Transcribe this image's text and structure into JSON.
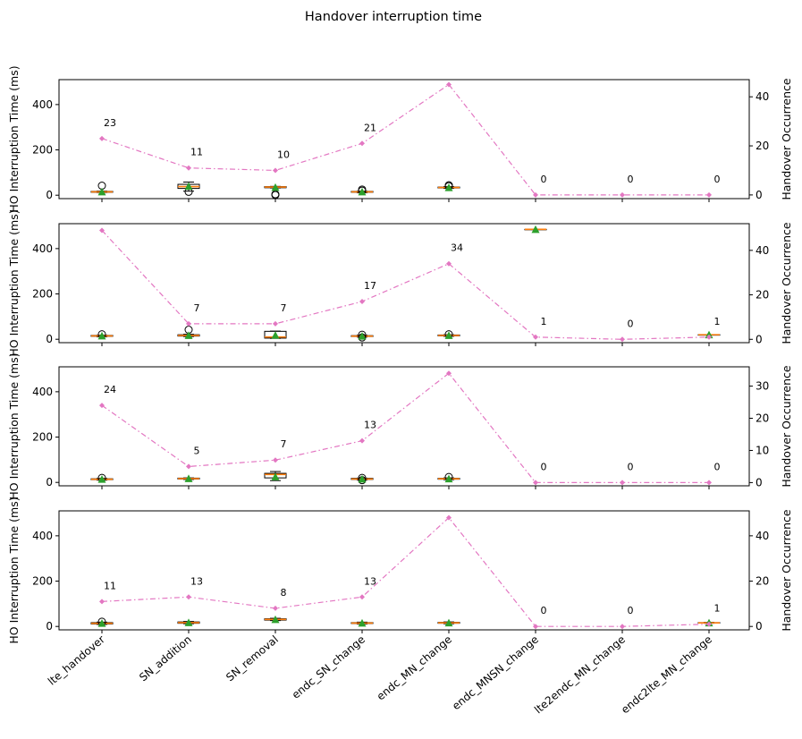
{
  "figure": {
    "title": "Handover interruption time"
  },
  "chart_data": {
    "type": "box+line",
    "categories": [
      "lte_handover",
      "SN_addition",
      "SN_removal",
      "endc_SN_change",
      "endc_MN_change",
      "endc_MNSN_change",
      "lte2endc_MN_change",
      "endc2lte_MN_change"
    ],
    "ylabel_left": "HO Interruption Time (ms)",
    "ylabel_right": "Handover Occurrence",
    "colors": {
      "occurrence_line": "#e377c2",
      "median": "#ff7f0e",
      "mean_marker": "#2ca02c",
      "box_edge": "#000000"
    },
    "panels": [
      {
        "ylim": [
          -15,
          510
        ],
        "yticks": [
          0,
          200,
          400
        ],
        "ylim_right": [
          -1.5,
          47
        ],
        "yticks_right": [
          0,
          20,
          40
        ],
        "occurrence": [
          23,
          11,
          10,
          21,
          45,
          0,
          0,
          0
        ],
        "occurrence_labels": [
          "23",
          "11",
          "10",
          "21",
          "",
          "0",
          "0",
          "0"
        ],
        "boxes": [
          {
            "q1": 13,
            "median": 15,
            "q3": 17,
            "whislo": 12,
            "whishi": 18,
            "mean": 15,
            "fliers": [
              42
            ]
          },
          {
            "q1": 30,
            "median": 38,
            "q3": 48,
            "whislo": 18,
            "whishi": 58,
            "mean": 40,
            "fliers": [
              15
            ]
          },
          {
            "q1": 33,
            "median": 36,
            "q3": 38,
            "whislo": 32,
            "whishi": 39,
            "mean": 35,
            "fliers": [
              1,
              4
            ]
          },
          {
            "q1": 13,
            "median": 15,
            "q3": 17,
            "whislo": 11,
            "whishi": 18,
            "mean": 15,
            "fliers": [
              25,
              20
            ]
          },
          {
            "q1": 32,
            "median": 34,
            "q3": 36,
            "whislo": 30,
            "whishi": 38,
            "mean": 34,
            "fliers": [
              44,
              40
            ]
          },
          null,
          null,
          null
        ]
      },
      {
        "ylim": [
          -15,
          510
        ],
        "yticks": [
          0,
          200,
          400
        ],
        "ylim_right": [
          -1.5,
          52
        ],
        "yticks_right": [
          0,
          20,
          40
        ],
        "occurrence": [
          49,
          7,
          7,
          17,
          34,
          1,
          0,
          1
        ],
        "occurrence_labels": [
          "",
          "7",
          "7",
          "17",
          "34",
          "1",
          "0",
          "1"
        ],
        "boxes": [
          {
            "q1": 13,
            "median": 15,
            "q3": 17,
            "whislo": 11,
            "whishi": 18,
            "mean": 15,
            "fliers": [
              22
            ]
          },
          {
            "q1": 14,
            "median": 17,
            "q3": 20,
            "whislo": 12,
            "whishi": 22,
            "mean": 17,
            "fliers": [
              42
            ]
          },
          {
            "q1": 5,
            "median": 10,
            "q3": 35,
            "whislo": 4,
            "whishi": 36,
            "mean": 18,
            "fliers": []
          },
          {
            "q1": 12,
            "median": 14,
            "q3": 16,
            "whislo": 10,
            "whishi": 18,
            "mean": 14,
            "fliers": [
              20,
              8
            ]
          },
          {
            "q1": 15,
            "median": 17,
            "q3": 19,
            "whislo": 13,
            "whishi": 20,
            "mean": 17,
            "fliers": [
              22
            ]
          },
          {
            "q1": 485,
            "median": 485,
            "q3": 485,
            "whislo": 485,
            "whishi": 485,
            "mean": 485,
            "fliers": []
          },
          null,
          {
            "q1": 20,
            "median": 20,
            "q3": 20,
            "whislo": 20,
            "whishi": 20,
            "mean": 20,
            "fliers": []
          }
        ]
      },
      {
        "ylim": [
          -15,
          510
        ],
        "yticks": [
          0,
          200,
          400
        ],
        "ylim_right": [
          -1,
          36
        ],
        "yticks_right": [
          0,
          10,
          20,
          30
        ],
        "occurrence": [
          24,
          5,
          7,
          13,
          34,
          0,
          0,
          0
        ],
        "occurrence_labels": [
          "24",
          "5",
          "7",
          "13",
          "",
          "0",
          "0",
          "0"
        ],
        "boxes": [
          {
            "q1": 12,
            "median": 14,
            "q3": 16,
            "whislo": 10,
            "whishi": 18,
            "mean": 14,
            "fliers": [
              20
            ]
          },
          {
            "q1": 15,
            "median": 17,
            "q3": 19,
            "whislo": 13,
            "whishi": 20,
            "mean": 17,
            "fliers": []
          },
          {
            "q1": 20,
            "median": 35,
            "q3": 40,
            "whislo": 8,
            "whishi": 48,
            "mean": 25,
            "fliers": []
          },
          {
            "q1": 13,
            "median": 15,
            "q3": 18,
            "whislo": 11,
            "whishi": 19,
            "mean": 15,
            "fliers": [
              20,
              10
            ]
          },
          {
            "q1": 14,
            "median": 16,
            "q3": 18,
            "whislo": 12,
            "whishi": 20,
            "mean": 16,
            "fliers": [
              24
            ]
          },
          null,
          null,
          null
        ]
      },
      {
        "ylim": [
          -15,
          510
        ],
        "yticks": [
          0,
          200,
          400
        ],
        "ylim_right": [
          -1.5,
          51
        ],
        "yticks_right": [
          0,
          20,
          40
        ],
        "occurrence": [
          11,
          13,
          8,
          13,
          48,
          0,
          0,
          1
        ],
        "occurrence_labels": [
          "11",
          "13",
          "8",
          "13",
          "",
          "0",
          "0",
          "1"
        ],
        "boxes": [
          {
            "q1": 11,
            "median": 14,
            "q3": 17,
            "whislo": 9,
            "whishi": 19,
            "mean": 14,
            "fliers": [
              21
            ]
          },
          {
            "q1": 14,
            "median": 17,
            "q3": 20,
            "whislo": 12,
            "whishi": 22,
            "mean": 17,
            "fliers": []
          },
          {
            "q1": 28,
            "median": 31,
            "q3": 34,
            "whislo": 26,
            "whishi": 36,
            "mean": 31,
            "fliers": []
          },
          {
            "q1": 13,
            "median": 15,
            "q3": 17,
            "whislo": 11,
            "whishi": 19,
            "mean": 15,
            "fliers": []
          },
          {
            "q1": 14,
            "median": 16,
            "q3": 18,
            "whislo": 12,
            "whishi": 20,
            "mean": 16,
            "fliers": []
          },
          null,
          null,
          {
            "q1": 15,
            "median": 16,
            "q3": 17,
            "whislo": 14,
            "whishi": 18,
            "mean": 16,
            "fliers": []
          }
        ]
      }
    ]
  }
}
